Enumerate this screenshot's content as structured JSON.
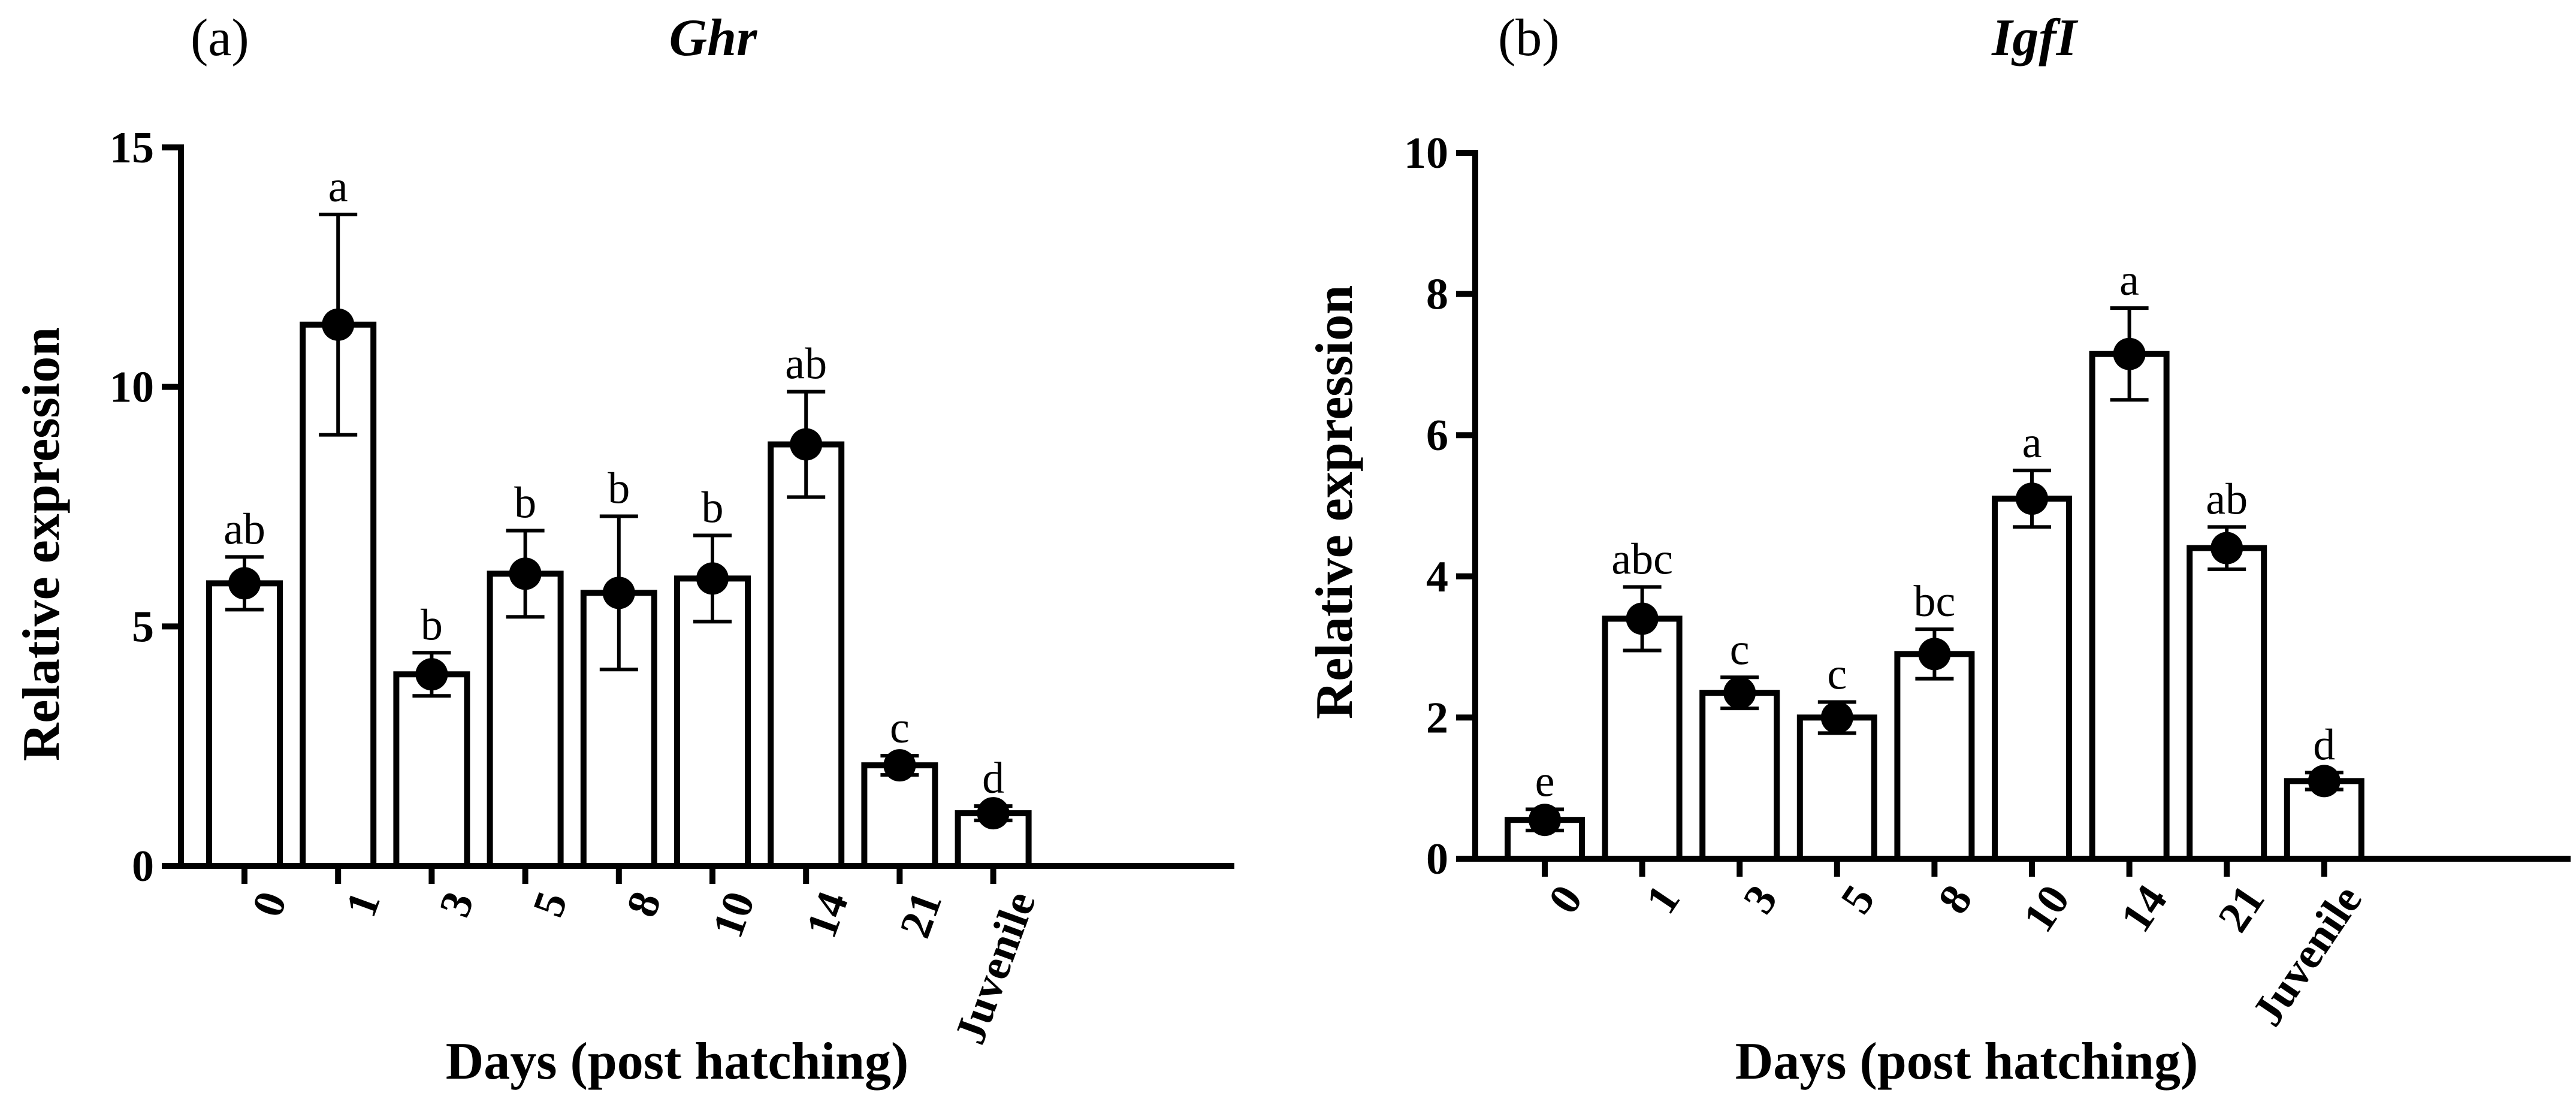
{
  "chart_data": [
    {
      "panel": "(a)",
      "type": "bar",
      "title": "Ghr",
      "xlabel": "Days (post hatching)",
      "ylabel": "Relative expression",
      "ylim": [
        0,
        15
      ],
      "yticks": [
        0,
        5,
        10,
        15
      ],
      "categories": [
        "0",
        "1",
        "3",
        "5",
        "8",
        "10",
        "14",
        "21",
        "Juvenile"
      ],
      "values": [
        5.9,
        11.3,
        4.0,
        6.1,
        5.7,
        6.0,
        8.8,
        2.1,
        1.1
      ],
      "errors": [
        0.55,
        2.3,
        0.45,
        0.9,
        1.6,
        0.9,
        1.1,
        0.2,
        0.15
      ],
      "letters": [
        "ab",
        "a",
        "b",
        "b",
        "b",
        "b",
        "ab",
        "c",
        "d"
      ]
    },
    {
      "panel": "(b)",
      "type": "bar",
      "title": "IgfI",
      "xlabel": "Days (post hatching)",
      "ylabel": "Relative expression",
      "ylim": [
        0,
        10
      ],
      "yticks": [
        0,
        2,
        4,
        6,
        8,
        10
      ],
      "categories": [
        "0",
        "1",
        "3",
        "5",
        "8",
        "10",
        "14",
        "21",
        "Juvenile"
      ],
      "values": [
        0.55,
        3.4,
        2.35,
        2.0,
        2.9,
        5.1,
        7.15,
        4.4,
        1.1
      ],
      "errors": [
        0.15,
        0.45,
        0.22,
        0.22,
        0.35,
        0.4,
        0.65,
        0.3,
        0.12
      ],
      "letters": [
        "e",
        "abc",
        "c",
        "c",
        "bc",
        "a",
        "a",
        "ab",
        "d"
      ]
    }
  ]
}
